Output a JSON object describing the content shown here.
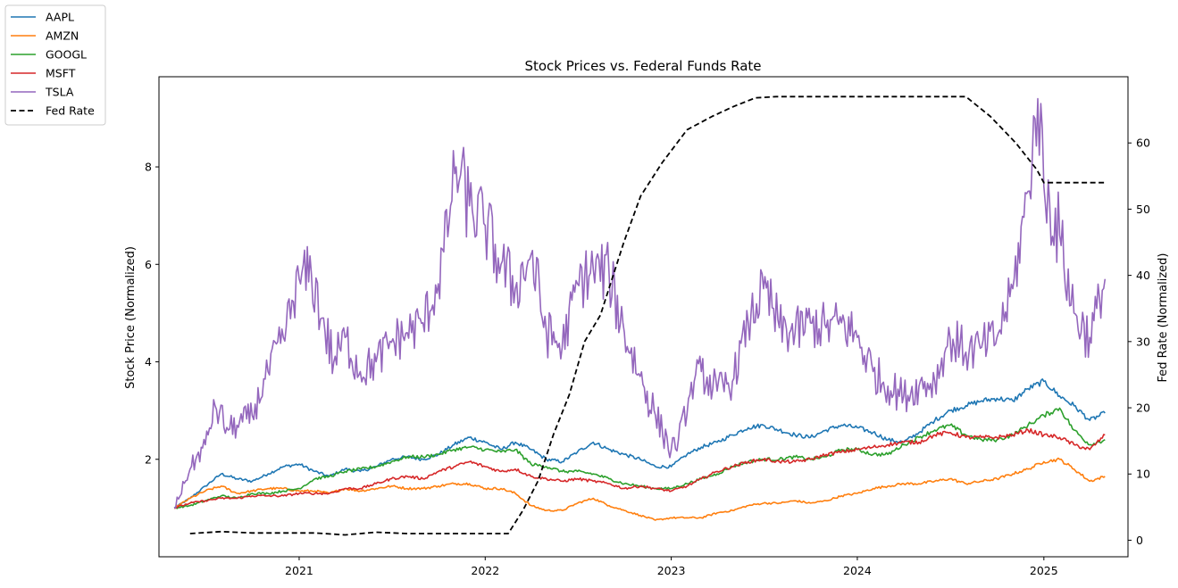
{
  "chart_data": {
    "type": "line",
    "title": "Stock Prices vs. Federal Funds Rate",
    "xlabel": "",
    "ylabel": "Stock Price (Normalized)",
    "y2label": "Fed Rate (Normalized)",
    "xlim": [
      "2020-04-01",
      "2025-06-15"
    ],
    "ylim": [
      0.0,
      9.85
    ],
    "y2lim": [
      -2.5,
      70.0
    ],
    "x_ticks": [
      "2021-01-01",
      "2022-01-01",
      "2023-01-01",
      "2024-01-01",
      "2025-01-01"
    ],
    "x_tick_labels": [
      "2021",
      "2022",
      "2023",
      "2024",
      "2025"
    ],
    "y_ticks": [
      2,
      4,
      6,
      8
    ],
    "y2_ticks": [
      0,
      10,
      20,
      30,
      40,
      50,
      60
    ],
    "grid": false,
    "legend": {
      "placement": "outside-top-left"
    },
    "series": [
      {
        "name": "AAPL",
        "color": "#1f77b4",
        "axis": "left",
        "x": [
          "2020-05-01",
          "2020-06-01",
          "2020-07-01",
          "2020-08-01",
          "2020-09-01",
          "2020-10-01",
          "2020-11-01",
          "2020-12-01",
          "2021-01-01",
          "2021-02-01",
          "2021-03-01",
          "2021-04-01",
          "2021-05-01",
          "2021-06-01",
          "2021-07-01",
          "2021-08-01",
          "2021-09-01",
          "2021-10-01",
          "2021-11-01",
          "2021-12-01",
          "2022-01-01",
          "2022-02-01",
          "2022-03-01",
          "2022-04-01",
          "2022-05-01",
          "2022-06-01",
          "2022-07-01",
          "2022-08-01",
          "2022-09-01",
          "2022-10-01",
          "2022-11-01",
          "2022-12-01",
          "2023-01-01",
          "2023-02-01",
          "2023-03-01",
          "2023-04-01",
          "2023-05-01",
          "2023-06-01",
          "2023-07-01",
          "2023-08-01",
          "2023-09-01",
          "2023-10-01",
          "2023-11-01",
          "2023-12-01",
          "2024-01-01",
          "2024-02-01",
          "2024-03-01",
          "2024-04-01",
          "2024-05-01",
          "2024-06-01",
          "2024-07-01",
          "2024-08-01",
          "2024-09-01",
          "2024-10-01",
          "2024-11-01",
          "2024-12-01",
          "2025-01-01",
          "2025-02-01",
          "2025-03-01",
          "2025-04-01",
          "2025-05-01"
        ],
        "values": [
          1.0,
          1.2,
          1.45,
          1.7,
          1.6,
          1.55,
          1.7,
          1.85,
          1.9,
          1.75,
          1.65,
          1.8,
          1.75,
          1.85,
          2.0,
          2.05,
          2.0,
          2.1,
          2.3,
          2.45,
          2.35,
          2.2,
          2.35,
          2.2,
          2.0,
          1.95,
          2.15,
          2.35,
          2.2,
          2.1,
          2.0,
          1.85,
          1.85,
          2.1,
          2.25,
          2.35,
          2.5,
          2.65,
          2.7,
          2.6,
          2.5,
          2.45,
          2.6,
          2.7,
          2.65,
          2.55,
          2.4,
          2.35,
          2.55,
          2.8,
          3.0,
          3.1,
          3.2,
          3.25,
          3.2,
          3.45,
          3.6,
          3.3,
          3.1,
          2.8,
          2.95
        ]
      },
      {
        "name": "AMZN",
        "color": "#ff7f0e",
        "axis": "left",
        "x": [
          "2020-05-01",
          "2020-06-01",
          "2020-07-01",
          "2020-08-01",
          "2020-09-01",
          "2020-10-01",
          "2020-11-01",
          "2020-12-01",
          "2021-01-01",
          "2021-02-01",
          "2021-03-01",
          "2021-04-01",
          "2021-05-01",
          "2021-06-01",
          "2021-07-01",
          "2021-08-01",
          "2021-09-01",
          "2021-10-01",
          "2021-11-01",
          "2021-12-01",
          "2022-01-01",
          "2022-02-01",
          "2022-03-01",
          "2022-04-01",
          "2022-05-01",
          "2022-06-01",
          "2022-07-01",
          "2022-08-01",
          "2022-09-01",
          "2022-10-01",
          "2022-11-01",
          "2022-12-01",
          "2023-01-01",
          "2023-02-01",
          "2023-03-01",
          "2023-04-01",
          "2023-05-01",
          "2023-06-01",
          "2023-07-01",
          "2023-08-01",
          "2023-09-01",
          "2023-10-01",
          "2023-11-01",
          "2023-12-01",
          "2024-01-01",
          "2024-02-01",
          "2024-03-01",
          "2024-04-01",
          "2024-05-01",
          "2024-06-01",
          "2024-07-01",
          "2024-08-01",
          "2024-09-01",
          "2024-10-01",
          "2024-11-01",
          "2024-12-01",
          "2025-01-01",
          "2025-02-01",
          "2025-03-01",
          "2025-04-01",
          "2025-05-01"
        ],
        "values": [
          1.0,
          1.2,
          1.35,
          1.45,
          1.3,
          1.35,
          1.4,
          1.4,
          1.35,
          1.35,
          1.3,
          1.4,
          1.35,
          1.4,
          1.45,
          1.4,
          1.4,
          1.45,
          1.5,
          1.5,
          1.4,
          1.4,
          1.3,
          1.05,
          0.95,
          0.95,
          1.1,
          1.2,
          1.05,
          0.95,
          0.85,
          0.75,
          0.8,
          0.8,
          0.8,
          0.9,
          0.95,
          1.05,
          1.1,
          1.1,
          1.15,
          1.1,
          1.15,
          1.25,
          1.3,
          1.4,
          1.45,
          1.5,
          1.5,
          1.55,
          1.6,
          1.5,
          1.55,
          1.6,
          1.7,
          1.8,
          1.95,
          2.0,
          1.8,
          1.55,
          1.65
        ]
      },
      {
        "name": "GOOGL",
        "color": "#2ca02c",
        "axis": "left",
        "x": [
          "2020-05-01",
          "2020-06-01",
          "2020-07-01",
          "2020-08-01",
          "2020-09-01",
          "2020-10-01",
          "2020-11-01",
          "2020-12-01",
          "2021-01-01",
          "2021-02-01",
          "2021-03-01",
          "2021-04-01",
          "2021-05-01",
          "2021-06-01",
          "2021-07-01",
          "2021-08-01",
          "2021-09-01",
          "2021-10-01",
          "2021-11-01",
          "2021-12-01",
          "2022-01-01",
          "2022-02-01",
          "2022-03-01",
          "2022-04-01",
          "2022-05-01",
          "2022-06-01",
          "2022-07-01",
          "2022-08-01",
          "2022-09-01",
          "2022-10-01",
          "2022-11-01",
          "2022-12-01",
          "2023-01-01",
          "2023-02-01",
          "2023-03-01",
          "2023-04-01",
          "2023-05-01",
          "2023-06-01",
          "2023-07-01",
          "2023-08-01",
          "2023-09-01",
          "2023-10-01",
          "2023-11-01",
          "2023-12-01",
          "2024-01-01",
          "2024-02-01",
          "2024-03-01",
          "2024-04-01",
          "2024-05-01",
          "2024-06-01",
          "2024-07-01",
          "2024-08-01",
          "2024-09-01",
          "2024-10-01",
          "2024-11-01",
          "2024-12-01",
          "2025-01-01",
          "2025-02-01",
          "2025-03-01",
          "2025-04-01",
          "2025-05-01"
        ],
        "values": [
          1.0,
          1.05,
          1.15,
          1.25,
          1.2,
          1.3,
          1.3,
          1.35,
          1.4,
          1.6,
          1.65,
          1.75,
          1.8,
          1.85,
          1.95,
          2.05,
          2.05,
          2.1,
          2.2,
          2.25,
          2.2,
          2.15,
          2.2,
          1.9,
          1.85,
          1.75,
          1.75,
          1.7,
          1.6,
          1.5,
          1.45,
          1.4,
          1.4,
          1.5,
          1.6,
          1.7,
          1.85,
          1.95,
          2.0,
          2.0,
          2.05,
          2.0,
          2.05,
          2.2,
          2.2,
          2.1,
          2.1,
          2.3,
          2.45,
          2.6,
          2.7,
          2.5,
          2.4,
          2.4,
          2.5,
          2.7,
          2.9,
          3.05,
          2.6,
          2.3,
          2.4
        ]
      },
      {
        "name": "MSFT",
        "color": "#d62728",
        "axis": "left",
        "x": [
          "2020-05-01",
          "2020-06-01",
          "2020-07-01",
          "2020-08-01",
          "2020-09-01",
          "2020-10-01",
          "2020-11-01",
          "2020-12-01",
          "2021-01-01",
          "2021-02-01",
          "2021-03-01",
          "2021-04-01",
          "2021-05-01",
          "2021-06-01",
          "2021-07-01",
          "2021-08-01",
          "2021-09-01",
          "2021-10-01",
          "2021-11-01",
          "2021-12-01",
          "2022-01-01",
          "2022-02-01",
          "2022-03-01",
          "2022-04-01",
          "2022-05-01",
          "2022-06-01",
          "2022-07-01",
          "2022-08-01",
          "2022-09-01",
          "2022-10-01",
          "2022-11-01",
          "2022-12-01",
          "2023-01-01",
          "2023-02-01",
          "2023-03-01",
          "2023-04-01",
          "2023-05-01",
          "2023-06-01",
          "2023-07-01",
          "2023-08-01",
          "2023-09-01",
          "2023-10-01",
          "2023-11-01",
          "2023-12-01",
          "2024-01-01",
          "2024-02-01",
          "2024-03-01",
          "2024-04-01",
          "2024-05-01",
          "2024-06-01",
          "2024-07-01",
          "2024-08-01",
          "2024-09-01",
          "2024-10-01",
          "2024-11-01",
          "2024-12-01",
          "2025-01-01",
          "2025-02-01",
          "2025-03-01",
          "2025-04-01",
          "2025-05-01"
        ],
        "values": [
          1.0,
          1.1,
          1.15,
          1.2,
          1.2,
          1.25,
          1.25,
          1.25,
          1.3,
          1.3,
          1.3,
          1.4,
          1.4,
          1.5,
          1.6,
          1.65,
          1.6,
          1.75,
          1.85,
          1.95,
          1.85,
          1.75,
          1.8,
          1.65,
          1.6,
          1.55,
          1.6,
          1.55,
          1.5,
          1.4,
          1.45,
          1.4,
          1.35,
          1.45,
          1.6,
          1.75,
          1.85,
          1.95,
          2.0,
          1.95,
          1.95,
          2.0,
          2.1,
          2.15,
          2.2,
          2.25,
          2.3,
          2.35,
          2.35,
          2.5,
          2.55,
          2.45,
          2.45,
          2.45,
          2.5,
          2.6,
          2.5,
          2.45,
          2.3,
          2.2,
          2.5
        ]
      },
      {
        "name": "TSLA",
        "color": "#9467bd",
        "axis": "left",
        "x": [
          "2020-05-01",
          "2020-06-01",
          "2020-07-01",
          "2020-07-20",
          "2020-08-15",
          "2020-09-01",
          "2020-10-01",
          "2020-11-01",
          "2020-12-01",
          "2021-01-01",
          "2021-01-25",
          "2021-02-15",
          "2021-03-10",
          "2021-04-01",
          "2021-05-01",
          "2021-06-01",
          "2021-07-01",
          "2021-08-01",
          "2021-09-01",
          "2021-10-01",
          "2021-10-25",
          "2021-11-05",
          "2021-12-01",
          "2022-01-01",
          "2022-02-01",
          "2022-03-01",
          "2022-04-01",
          "2022-05-01",
          "2022-06-01",
          "2022-07-01",
          "2022-08-01",
          "2022-09-01",
          "2022-10-01",
          "2022-11-01",
          "2022-12-01",
          "2023-01-01",
          "2023-01-15",
          "2023-02-15",
          "2023-03-01",
          "2023-04-01",
          "2023-05-01",
          "2023-06-01",
          "2023-07-01",
          "2023-08-01",
          "2023-09-01",
          "2023-10-01",
          "2023-11-01",
          "2023-12-01",
          "2024-01-01",
          "2024-02-01",
          "2024-03-01",
          "2024-04-01",
          "2024-05-01",
          "2024-06-01",
          "2024-07-01",
          "2024-08-01",
          "2024-09-01",
          "2024-10-01",
          "2024-11-01",
          "2024-12-01",
          "2024-12-20",
          "2025-01-01",
          "2025-02-01",
          "2025-03-01",
          "2025-04-01",
          "2025-05-01"
        ],
        "values": [
          1.0,
          1.8,
          2.3,
          3.1,
          2.6,
          2.7,
          2.9,
          3.8,
          4.5,
          5.7,
          5.8,
          4.9,
          4.0,
          4.5,
          3.8,
          4.0,
          4.4,
          4.6,
          4.8,
          5.6,
          7.2,
          8.0,
          7.2,
          6.8,
          6.0,
          5.5,
          6.2,
          4.6,
          4.3,
          5.6,
          5.9,
          5.8,
          4.6,
          3.7,
          2.9,
          2.2,
          2.4,
          3.6,
          3.8,
          3.4,
          3.6,
          4.8,
          5.5,
          4.7,
          4.6,
          4.8,
          4.7,
          4.8,
          4.5,
          3.8,
          3.5,
          3.3,
          3.5,
          3.6,
          4.5,
          4.2,
          4.3,
          4.5,
          5.5,
          7.5,
          9.4,
          7.6,
          6.6,
          5.0,
          4.5,
          5.7
        ]
      },
      {
        "name": "Fed Rate",
        "color": "#000000",
        "axis": "right",
        "dashed": true,
        "x": [
          "2020-06-01",
          "2020-08-01",
          "2020-10-01",
          "2020-12-01",
          "2021-02-01",
          "2021-04-01",
          "2021-06-01",
          "2021-08-01",
          "2021-10-01",
          "2021-12-01",
          "2022-01-01",
          "2022-02-15",
          "2022-03-16",
          "2022-04-15",
          "2022-05-15",
          "2022-06-15",
          "2022-07-15",
          "2022-08-15",
          "2022-09-30",
          "2022-11-02",
          "2022-12-14",
          "2023-02-01",
          "2023-03-22",
          "2023-05-03",
          "2023-06-15",
          "2023-07-26",
          "2023-09-01",
          "2023-10-01",
          "2023-11-01",
          "2023-12-01",
          "2024-01-01",
          "2024-02-01",
          "2024-03-01",
          "2024-04-01",
          "2024-05-01",
          "2024-06-01",
          "2024-07-01",
          "2024-08-01",
          "2024-09-18",
          "2024-11-07",
          "2024-12-18",
          "2025-01-01",
          "2025-02-01",
          "2025-03-01",
          "2025-04-01",
          "2025-04-30"
        ],
        "values": [
          1.0,
          1.3,
          1.1,
          1.1,
          1.1,
          0.8,
          1.2,
          1.0,
          1.0,
          1.0,
          1.0,
          1.0,
          4.5,
          9.0,
          16.0,
          22.0,
          30.0,
          34.0,
          45.0,
          52.0,
          57.0,
          62.0,
          64.0,
          65.5,
          66.8,
          67.0,
          67.0,
          67.0,
          67.0,
          67.0,
          67.0,
          67.0,
          67.0,
          67.0,
          67.0,
          67.0,
          67.0,
          67.0,
          64.0,
          60.0,
          56.0,
          54.0,
          54.0,
          54.0,
          54.0,
          54.0
        ]
      }
    ]
  }
}
